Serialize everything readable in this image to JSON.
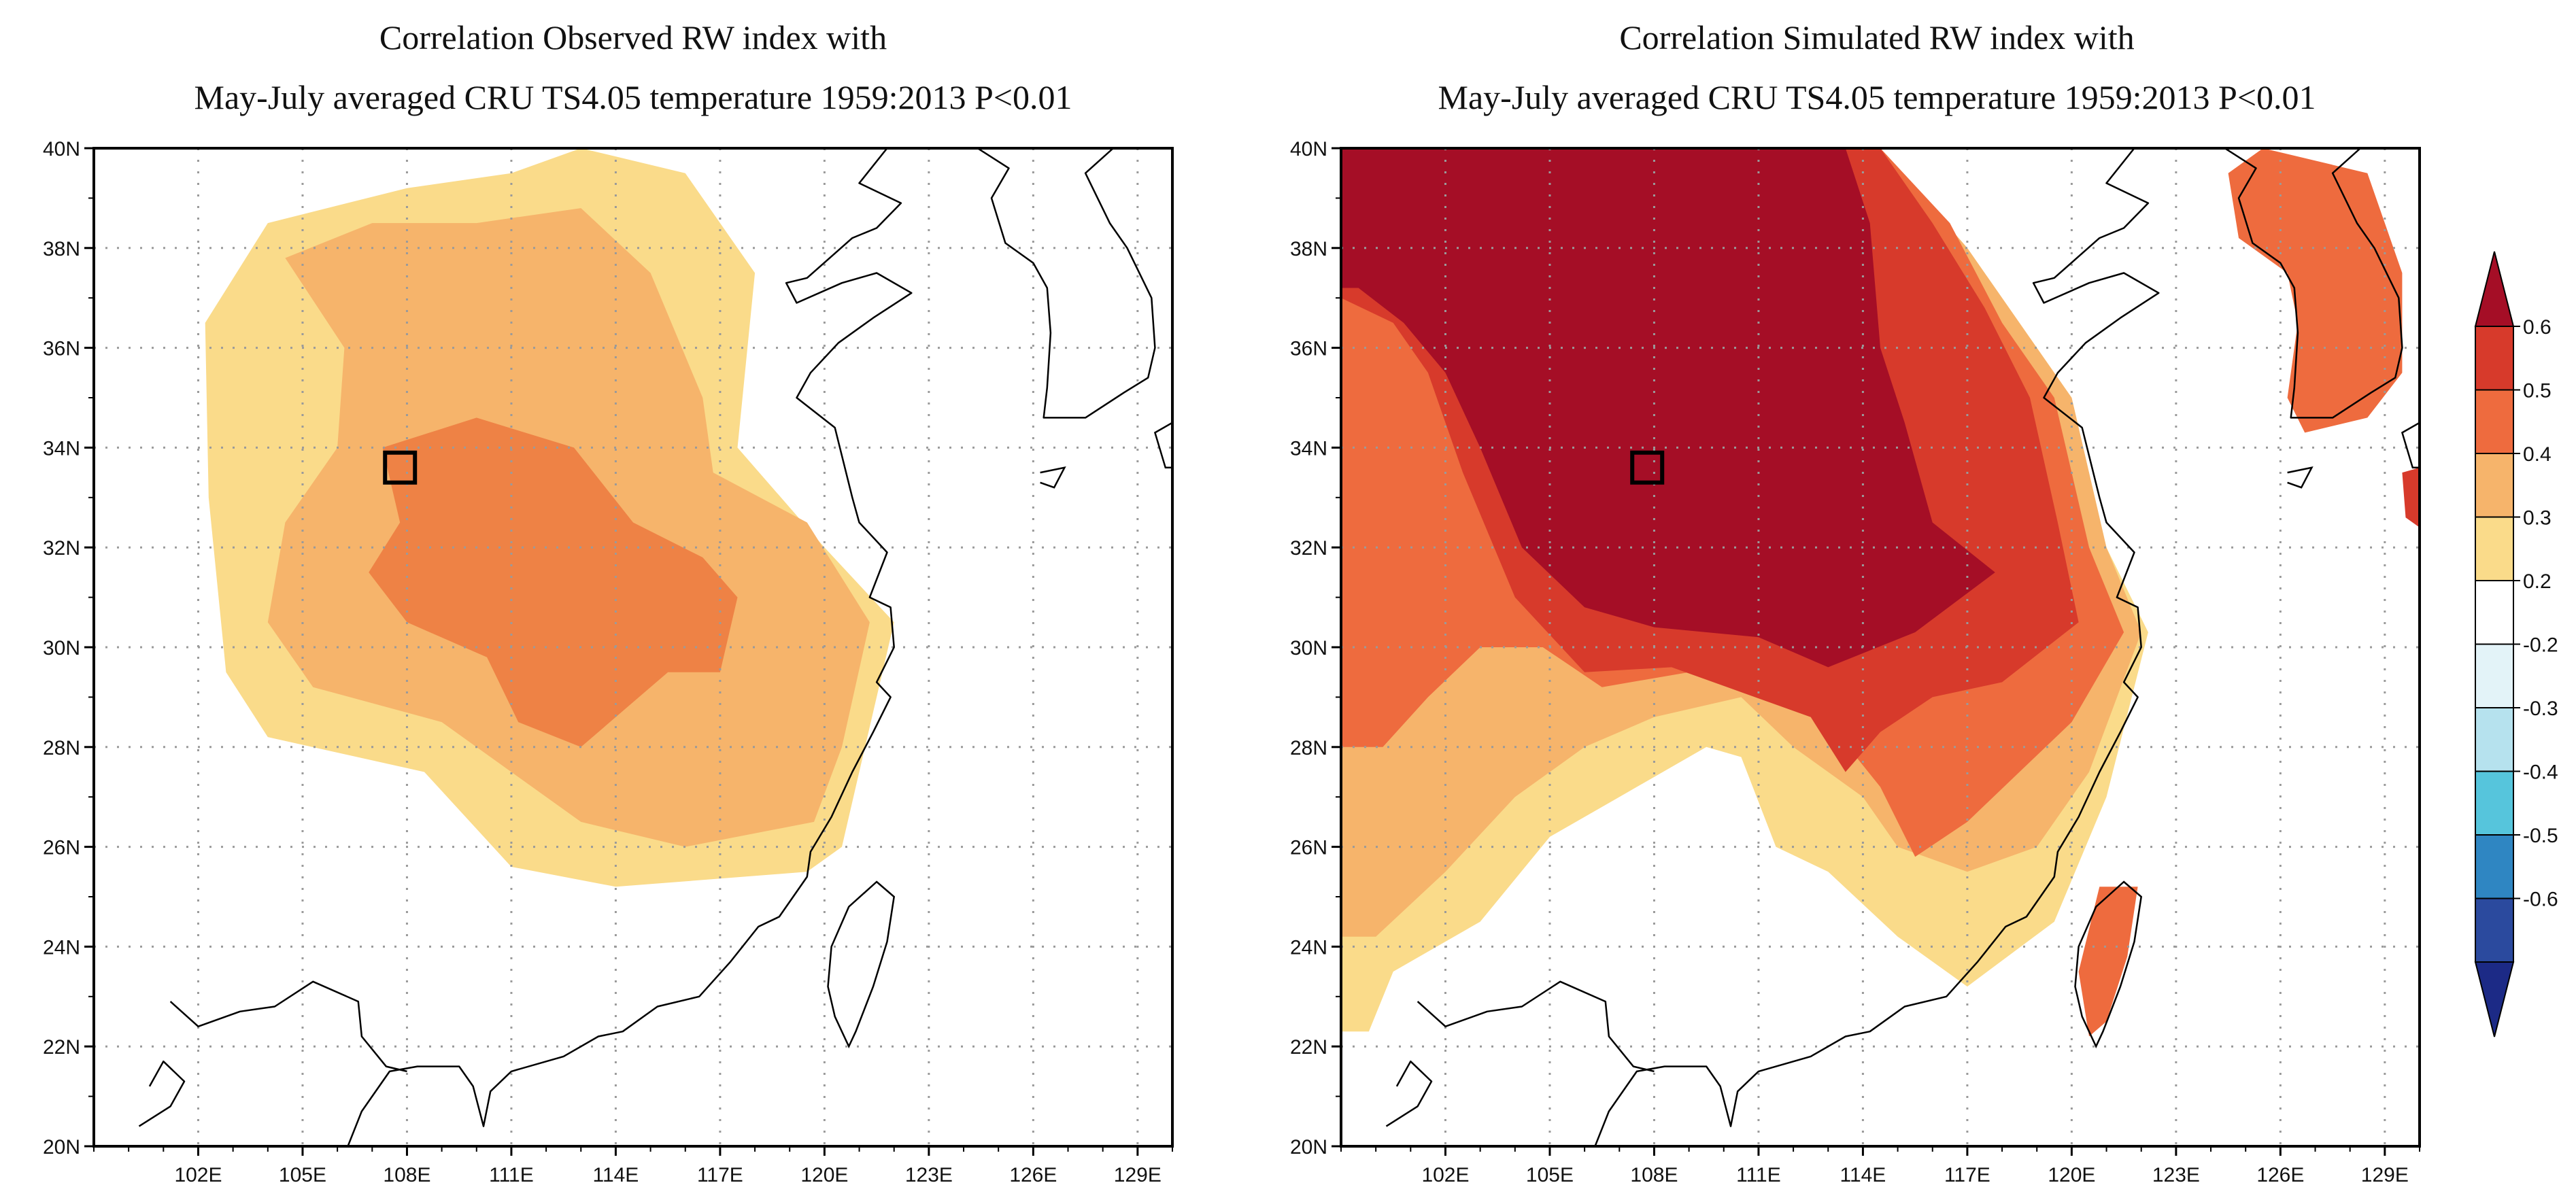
{
  "chart_data": [
    {
      "type": "heatmap",
      "title_line1": "Correlation Observed RW index with",
      "title_line2": "May-July averaged CRU TS4.05 temperature 1959:2013 P<0.01",
      "lon_range": [
        99,
        130
      ],
      "lat_range": [
        20,
        40
      ],
      "x_ticks": [
        "102E",
        "105E",
        "108E",
        "111E",
        "114E",
        "117E",
        "120E",
        "123E",
        "126E",
        "129E"
      ],
      "x_tick_values": [
        102,
        105,
        108,
        111,
        114,
        117,
        120,
        123,
        126,
        129
      ],
      "y_ticks": [
        "20N",
        "22N",
        "24N",
        "26N",
        "28N",
        "30N",
        "32N",
        "34N",
        "36N",
        "38N",
        "40N"
      ],
      "y_tick_values": [
        20,
        22,
        24,
        26,
        28,
        30,
        32,
        34,
        36,
        38,
        40
      ],
      "site_marker": {
        "lon": 107.8,
        "lat": 33.6
      },
      "regions": [
        {
          "level": 0.2,
          "color": "#fadb8a",
          "polygon": [
            [
              104,
              38.5
            ],
            [
              108,
              39.2
            ],
            [
              111,
              39.5
            ],
            [
              113,
              40
            ],
            [
              116,
              39.5
            ],
            [
              118,
              37.5
            ],
            [
              117.5,
              34
            ],
            [
              120,
              32
            ],
            [
              122,
              30.5
            ],
            [
              121,
              27.5
            ],
            [
              120.5,
              26
            ],
            [
              119.5,
              25.5
            ],
            [
              114,
              25.2
            ],
            [
              111,
              25.6
            ],
            [
              108.5,
              27.5
            ],
            [
              104,
              28.2
            ],
            [
              102.8,
              29.5
            ],
            [
              102.3,
              33
            ],
            [
              102.2,
              36.5
            ]
          ]
        },
        {
          "level": 0.3,
          "color": "#f6b46b",
          "polygon": [
            [
              104.5,
              37.8
            ],
            [
              107,
              38.5
            ],
            [
              110,
              38.5
            ],
            [
              113,
              38.8
            ],
            [
              115,
              37.5
            ],
            [
              116.5,
              35
            ],
            [
              116.8,
              33.5
            ],
            [
              119.5,
              32.5
            ],
            [
              121.3,
              30.5
            ],
            [
              120.5,
              28
            ],
            [
              119.7,
              26.5
            ],
            [
              116,
              26
            ],
            [
              113,
              26.5
            ],
            [
              111,
              27.5
            ],
            [
              109,
              28.5
            ],
            [
              105.3,
              29.2
            ],
            [
              104,
              30.5
            ],
            [
              104.5,
              32.5
            ],
            [
              106,
              34
            ],
            [
              106.2,
              36
            ]
          ]
        },
        {
          "level": 0.4,
          "color": "#ee8245",
          "polygon": [
            [
              107.3,
              34
            ],
            [
              110,
              34.6
            ],
            [
              112.8,
              34
            ],
            [
              114.5,
              32.5
            ],
            [
              116.5,
              31.8
            ],
            [
              117.5,
              31
            ],
            [
              117,
              29.5
            ],
            [
              115.5,
              29.5
            ],
            [
              113,
              28
            ],
            [
              111.2,
              28.5
            ],
            [
              110.3,
              29.8
            ],
            [
              108,
              30.5
            ],
            [
              106.9,
              31.5
            ],
            [
              107.8,
              32.5
            ]
          ]
        }
      ]
    },
    {
      "type": "heatmap",
      "title_line1": "Correlation Simulated RW index with",
      "title_line2": "May-July averaged CRU TS4.05 temperature 1959:2013 P<0.01",
      "lon_range": [
        99,
        130
      ],
      "lat_range": [
        20,
        40
      ],
      "x_ticks": [
        "102E",
        "105E",
        "108E",
        "111E",
        "114E",
        "117E",
        "120E",
        "123E",
        "126E",
        "129E"
      ],
      "x_tick_values": [
        102,
        105,
        108,
        111,
        114,
        117,
        120,
        123,
        126,
        129
      ],
      "y_ticks": [
        "20N",
        "22N",
        "24N",
        "26N",
        "28N",
        "30N",
        "32N",
        "34N",
        "36N",
        "38N",
        "40N"
      ],
      "y_tick_values": [
        20,
        22,
        24,
        26,
        28,
        30,
        32,
        34,
        36,
        38,
        40
      ],
      "site_marker": {
        "lon": 107.8,
        "lat": 33.6
      },
      "regions": [
        {
          "level": 0.2,
          "color": "#fadb8a",
          "polygon": [
            [
              99,
              40
            ],
            [
              114.5,
              40
            ],
            [
              117,
              38
            ],
            [
              118.5,
              36.5
            ],
            [
              120,
              35
            ],
            [
              121,
              32
            ],
            [
              122.2,
              30.3
            ],
            [
              121,
              27
            ],
            [
              119.5,
              24.5
            ],
            [
              117,
              23.2
            ],
            [
              115,
              24.2
            ],
            [
              113,
              25.5
            ],
            [
              111.5,
              26
            ],
            [
              110.5,
              27.8
            ],
            [
              109.5,
              28
            ],
            [
              107,
              27
            ],
            [
              105,
              26.2
            ],
            [
              103,
              24.5
            ],
            [
              100.5,
              23.5
            ],
            [
              99.8,
              22.3
            ],
            [
              99,
              22.3
            ]
          ]
        },
        {
          "level": 0.3,
          "color": "#f6b46b",
          "polygon": [
            [
              99,
              40
            ],
            [
              114.5,
              40
            ],
            [
              117,
              38
            ],
            [
              118.5,
              36.5
            ],
            [
              120,
              35
            ],
            [
              121,
              32
            ],
            [
              122,
              30.3
            ],
            [
              120.5,
              27.5
            ],
            [
              119,
              26
            ],
            [
              117,
              25.5
            ],
            [
              115,
              26
            ],
            [
              114,
              27
            ],
            [
              112,
              28
            ],
            [
              110.5,
              29
            ],
            [
              108,
              28.6
            ],
            [
              106,
              28
            ],
            [
              104,
              27
            ],
            [
              102,
              25.5
            ],
            [
              100,
              24.2
            ],
            [
              99,
              24.2
            ]
          ]
        },
        {
          "level": 0.4,
          "color": "#ee6b3e",
          "polygon": [
            [
              99,
              40
            ],
            [
              114.5,
              40
            ],
            [
              116.5,
              38.5
            ],
            [
              118,
              36.5
            ],
            [
              119.5,
              35
            ],
            [
              120.5,
              32
            ],
            [
              121.5,
              30.3
            ],
            [
              120,
              28.5
            ],
            [
              118.5,
              27.5
            ],
            [
              117,
              26.5
            ],
            [
              115.5,
              25.8
            ],
            [
              114.5,
              27.2
            ],
            [
              113,
              28.5
            ],
            [
              111.5,
              29
            ],
            [
              109,
              29.5
            ],
            [
              106.5,
              29.2
            ],
            [
              104.8,
              30
            ],
            [
              103,
              30
            ],
            [
              101.5,
              29
            ],
            [
              100.2,
              28
            ],
            [
              99,
              28
            ]
          ]
        },
        {
          "level": 0.5,
          "color": "#d73a2b",
          "polygon": [
            [
              99,
              40
            ],
            [
              114.5,
              40
            ],
            [
              116,
              38.5
            ],
            [
              117.5,
              36.8
            ],
            [
              118.8,
              35
            ],
            [
              119.6,
              32.5
            ],
            [
              120.2,
              30.5
            ],
            [
              118,
              29.3
            ],
            [
              116,
              29
            ],
            [
              114.5,
              28.3
            ],
            [
              113.5,
              27.5
            ],
            [
              112.5,
              28.6
            ],
            [
              110.5,
              29.1
            ],
            [
              108.5,
              29.6
            ],
            [
              106,
              29.5
            ],
            [
              104,
              31
            ],
            [
              102.5,
              33.5
            ],
            [
              101.5,
              35.5
            ],
            [
              100.5,
              36.5
            ],
            [
              99,
              37
            ]
          ]
        },
        {
          "level": 0.6,
          "color": "#a50e26",
          "polygon": [
            [
              99,
              40
            ],
            [
              113.5,
              40
            ],
            [
              114.2,
              38.5
            ],
            [
              114.5,
              36
            ],
            [
              115.2,
              34.5
            ],
            [
              116,
              32.5
            ],
            [
              117.8,
              31.5
            ],
            [
              115.5,
              30.3
            ],
            [
              113,
              29.6
            ],
            [
              111,
              30.2
            ],
            [
              108,
              30.4
            ],
            [
              106,
              30.8
            ],
            [
              104.2,
              32
            ],
            [
              103,
              34
            ],
            [
              102,
              35.5
            ],
            [
              100.8,
              36.5
            ],
            [
              99.5,
              37.2
            ],
            [
              99,
              37.2
            ]
          ]
        },
        {
          "level": 0.4,
          "color": "#ee6b3e",
          "polygon": [
            [
              125.5,
              40
            ],
            [
              128.5,
              39.5
            ],
            [
              129.5,
              37.5
            ],
            [
              129.5,
              35.5
            ],
            [
              128.5,
              34.6
            ],
            [
              126.7,
              34.3
            ],
            [
              126.2,
              35
            ],
            [
              126.5,
              36.5
            ],
            [
              126.2,
              37.5
            ],
            [
              124.8,
              38.2
            ],
            [
              124.5,
              39.5
            ]
          ]
        },
        {
          "level": 0.4,
          "color": "#ee6b3e",
          "polygon": [
            [
              120.8,
              25.2
            ],
            [
              121.9,
              25.2
            ],
            [
              121.6,
              23.8
            ],
            [
              121,
              22.5
            ],
            [
              120.5,
              22.2
            ],
            [
              120.2,
              23.5
            ]
          ]
        },
        {
          "level": 0.5,
          "color": "#d73a2b",
          "polygon": [
            [
              129.5,
              33.5
            ],
            [
              130,
              33.6
            ],
            [
              130,
              32.4
            ],
            [
              129.6,
              32.6
            ]
          ]
        }
      ]
    }
  ],
  "colorbar": {
    "labels": [
      "0.6",
      "0.5",
      "0.4",
      "0.3",
      "0.2",
      "-0.2",
      "-0.3",
      "-0.4",
      "-0.5",
      "-0.6"
    ],
    "colors": [
      "#a50e26",
      "#d73a2b",
      "#ee6b3e",
      "#f6b46b",
      "#fadb8a",
      "#ffffff",
      "#e3f3f8",
      "#b6e2ee",
      "#56c5dc",
      "#2f86c2",
      "#2b4a9e",
      "#1c2a86"
    ]
  }
}
